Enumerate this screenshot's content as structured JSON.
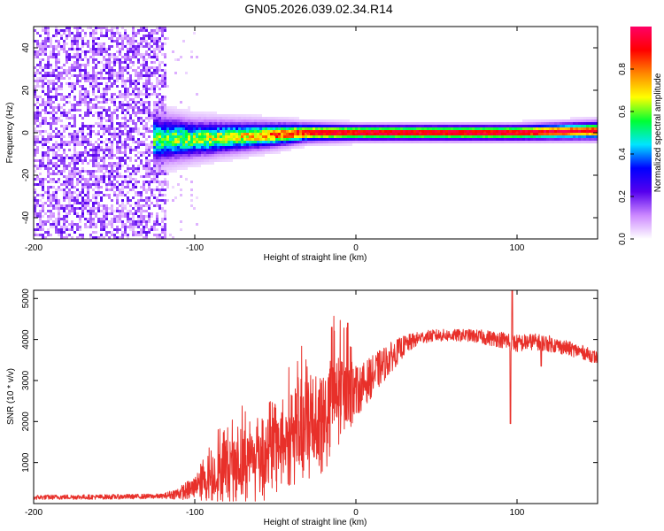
{
  "title": "GN05.2026.039.02.34.R14",
  "colors": {
    "axis": "#000000",
    "snr_line": "#e8302a",
    "ridge_peak": "#ff2020"
  },
  "chart_data": [
    {
      "type": "heatmap",
      "title": "GN05.2026.039.02.34.R14",
      "xlabel": "Height of straight line (km)",
      "ylabel": "Frequency (Hz)",
      "xlim": [
        -200,
        150
      ],
      "ylim": [
        -50,
        50
      ],
      "x_ticks": [
        -200,
        -100,
        0,
        100
      ],
      "y_ticks": [
        -40,
        -20,
        0,
        20,
        40
      ],
      "grid": false,
      "colorbar": {
        "label": "Normalized spectral amplitude",
        "range": [
          0,
          1
        ],
        "ticks": [
          "0.0",
          "0.2",
          "0.4",
          "0.6",
          "0.8"
        ],
        "colors": [
          "#ffffff",
          "#cc88ff",
          "#5500ee",
          "#0000ff",
          "#00e5ff",
          "#00ff33",
          "#ffff00",
          "#ff8800",
          "#ff0000",
          "#ff0066"
        ]
      },
      "noise_region": {
        "x_start": -200,
        "x_end": -118,
        "freq_span": [
          -50,
          50
        ],
        "amplitude": 0.15
      },
      "signal_ridge": [
        {
          "x": -125,
          "center_hz": -3,
          "halfwidth_hz": 8,
          "peak_amplitude": 0.45
        },
        {
          "x": -100,
          "center_hz": -3,
          "halfwidth_hz": 6,
          "peak_amplitude": 0.5
        },
        {
          "x": -75,
          "center_hz": -2,
          "halfwidth_hz": 5,
          "peak_amplitude": 0.55
        },
        {
          "x": -50,
          "center_hz": -1,
          "halfwidth_hz": 4,
          "peak_amplitude": 0.7
        },
        {
          "x": -30,
          "center_hz": 0,
          "halfwidth_hz": 3,
          "peak_amplitude": 0.8
        },
        {
          "x": 0,
          "center_hz": 0,
          "halfwidth_hz": 2.5,
          "peak_amplitude": 0.85
        },
        {
          "x": 50,
          "center_hz": 0,
          "halfwidth_hz": 2.5,
          "peak_amplitude": 0.85
        },
        {
          "x": 100,
          "center_hz": 0,
          "halfwidth_hz": 2.5,
          "peak_amplitude": 0.85
        },
        {
          "x": 150,
          "center_hz": 1,
          "halfwidth_hz": 3,
          "peak_amplitude": 0.8
        }
      ]
    },
    {
      "type": "line",
      "xlabel": "Height of straight line (km)",
      "ylabel": "SNR (10 * v/v)",
      "xlim": [
        -200,
        150
      ],
      "ylim": [
        0,
        5200
      ],
      "x_ticks": [
        -200,
        -100,
        0,
        100
      ],
      "y_ticks": [
        1000,
        2000,
        3000,
        4000,
        5000
      ],
      "grid": false,
      "series": [
        {
          "name": "SNR",
          "x": [
            -200,
            -180,
            -160,
            -140,
            -120,
            -110,
            -100,
            -90,
            -80,
            -70,
            -60,
            -50,
            -40,
            -30,
            -20,
            -10,
            0,
            10,
            20,
            30,
            40,
            50,
            60,
            70,
            80,
            90,
            95,
            100,
            110,
            120,
            130,
            140,
            150
          ],
          "y_mid": [
            150,
            160,
            160,
            170,
            180,
            250,
            380,
            500,
            700,
            800,
            900,
            1100,
            1400,
            1500,
            1700,
            2400,
            2700,
            3100,
            3500,
            3850,
            4050,
            4100,
            4100,
            4100,
            4050,
            4000,
            3950,
            3900,
            3950,
            3900,
            3800,
            3700,
            3550
          ],
          "y_spread": [
            60,
            60,
            60,
            60,
            60,
            150,
            300,
            500,
            700,
            800,
            900,
            900,
            1000,
            1100,
            1200,
            1100,
            600,
            500,
            400,
            250,
            150,
            150,
            150,
            150,
            180,
            200,
            250,
            220,
            200,
            200,
            180,
            170,
            160
          ],
          "spikes": [
            {
              "x": -15,
              "y": 4300
            },
            {
              "x": -5,
              "y": 4400
            },
            {
              "x": 96,
              "y": 1950
            },
            {
              "x": 97,
              "y": 5200
            },
            {
              "x": 115,
              "y": 3350
            }
          ]
        }
      ]
    }
  ]
}
